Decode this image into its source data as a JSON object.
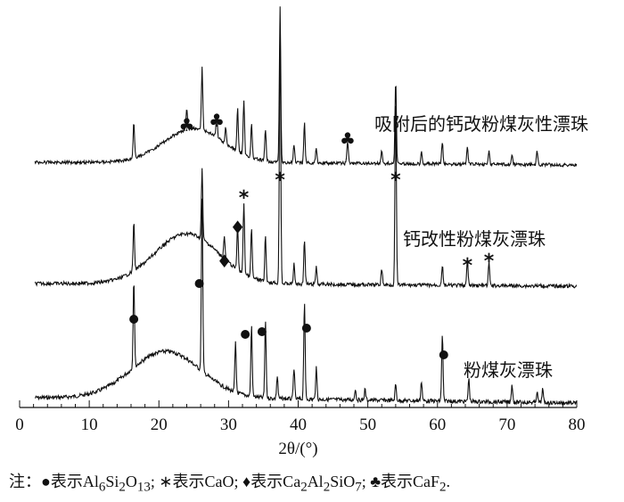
{
  "chart_data": {
    "type": "line",
    "title": "",
    "xlabel": "2θ/(°)",
    "ylabel": "",
    "xlim": [
      0,
      80
    ],
    "xticks": [
      "0",
      "10",
      "20",
      "30",
      "40",
      "50",
      "60",
      "70",
      "80"
    ],
    "grid": false,
    "series": [
      {
        "name": "粉煤灰漂珠",
        "peaks_2theta": [
          16.4,
          26.2,
          31.0,
          33.3,
          35.3,
          37.0,
          39.4,
          40.9,
          42.6,
          48.2,
          49.6,
          54.0,
          57.7,
          60.7,
          64.5,
          70.7,
          74.3,
          75.1
        ]
      },
      {
        "name": "钙改性粉煤灰漂珠",
        "peaks_2theta": [
          16.4,
          26.2,
          29.4,
          31.3,
          32.2,
          33.3,
          35.3,
          37.4,
          39.4,
          40.9,
          42.6,
          52.0,
          54.0,
          60.7,
          64.3,
          67.4
        ]
      },
      {
        "name": "吸附后的钙改粉煤灰性漂珠",
        "peaks_2theta": [
          16.4,
          24.0,
          26.2,
          28.3,
          29.6,
          31.3,
          32.2,
          33.3,
          35.3,
          37.4,
          39.4,
          40.9,
          42.6,
          47.1,
          52.0,
          54.0,
          57.7,
          60.7,
          64.3,
          67.4,
          70.7,
          74.3
        ]
      }
    ],
    "annotations": [
      {
        "symbol": "●",
        "meaning": "Al6Si2O13",
        "x": [
          16.4,
          25.8,
          32.4,
          34.8,
          41.2,
          60.9
        ]
      },
      {
        "symbol": "*",
        "meaning": "CaO",
        "x": [
          32.2,
          37.4,
          54.0,
          64.3,
          67.4
        ]
      },
      {
        "symbol": "♦",
        "meaning": "Ca2Al2SiO7",
        "x": [
          29.4,
          31.3
        ]
      },
      {
        "symbol": "♣",
        "meaning": "CaF2",
        "x": [
          24.0,
          28.3,
          47.1
        ]
      }
    ],
    "note": "注：●表示Al6Si2O13; *表示CaO; ♦表示Ca2Al2SiO7; ♣表示CaF2."
  }
}
